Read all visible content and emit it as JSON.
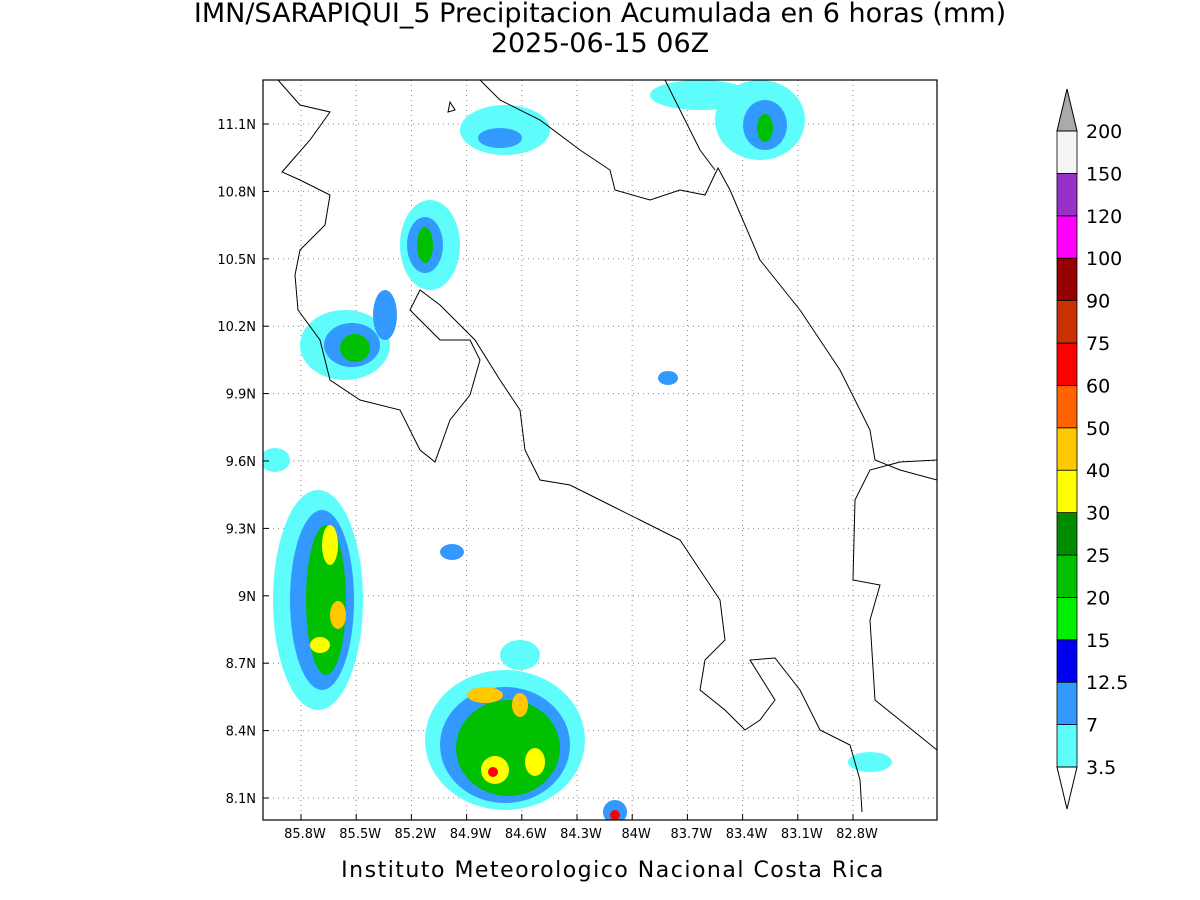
{
  "title": "IMN/SARAPIQUI_5 Precipitacion Acumulada en 6 horas (mm)",
  "subtitle": "2025-06-15 06Z",
  "lat_ticks": [
    "11.1N",
    "10.8N",
    "10.5N",
    "10.2N",
    "9.9N",
    "9.6N",
    "9.3N",
    "9N",
    "8.7N",
    "8.4N",
    "8.1N"
  ],
  "lon_ticks": [
    "85.8W",
    "85.5W",
    "85.2W",
    "84.9W",
    "84.6W",
    "84.3W",
    "84W",
    "83.7W",
    "83.4W",
    "83.1W",
    "82.8W"
  ],
  "colorbar": {
    "levels": [
      "3.5",
      "7",
      "12.5",
      "15",
      "20",
      "25",
      "30",
      "40",
      "50",
      "60",
      "75",
      "90",
      "100",
      "120",
      "150",
      "200"
    ],
    "colors": [
      "#5ffcfc",
      "#3399ff",
      "#0000f0",
      "#00f000",
      "#00c000",
      "#008c00",
      "#ffff00",
      "#ffc800",
      "#ff6400",
      "#ff0000",
      "#c83200",
      "#960000",
      "#ff00ff",
      "#9632c8",
      "#f5f5f5"
    ],
    "below_color": "#ffffff",
    "above_color": "#aaaaaa"
  },
  "footer": "Instituto Meteorologico Nacional Costa Rica"
}
